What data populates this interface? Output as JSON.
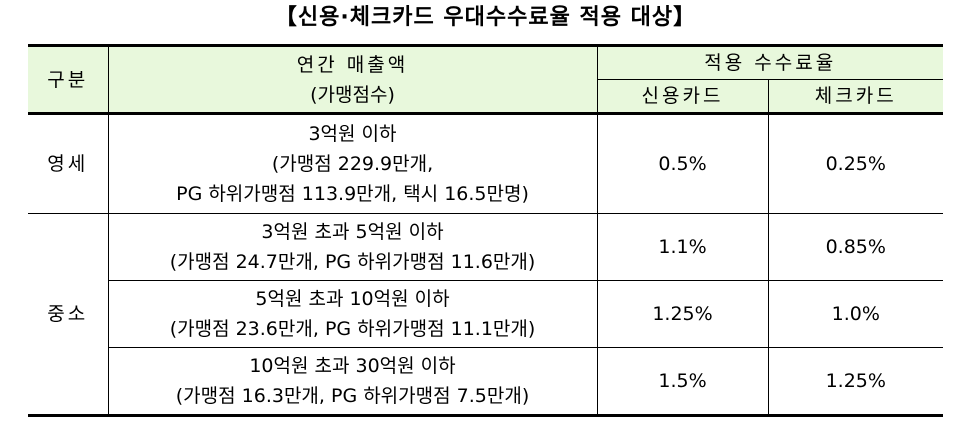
{
  "title": "【신용·체크카드 우대수수료율 적용 대상】",
  "header": {
    "category": "구분",
    "revenue_line1": "연간 매출액",
    "revenue_line2": "(가맹점수)",
    "applied_rate": "적용 수수료율",
    "credit_card": "신용카드",
    "check_card": "체크카드"
  },
  "rows": [
    {
      "category": "영세",
      "revenue_lines": [
        "3억원 이하",
        "(가맹점 229.9만개,",
        "PG 하위가맹점 113.9만개, 택시 16.5만명)"
      ],
      "credit": "0.5%",
      "check": "0.25%"
    },
    {
      "category": "중소",
      "revenue_lines": [
        "3억원 초과 5억원 이하",
        "(가맹점 24.7만개, PG 하위가맹점 11.6만개)"
      ],
      "credit": "1.1%",
      "check": "0.85%"
    },
    {
      "category": "",
      "revenue_lines": [
        "5억원 초과 10억원 이하",
        "(가맹점 23.6만개, PG 하위가맹점 11.1만개)"
      ],
      "credit": "1.25%",
      "check": "1.0%"
    },
    {
      "category": "",
      "revenue_lines": [
        "10억원 초과 30억원 이하",
        "(가맹점 16.3만개, PG 하위가맹점 7.5만개)"
      ],
      "credit": "1.5%",
      "check": "1.25%"
    }
  ]
}
